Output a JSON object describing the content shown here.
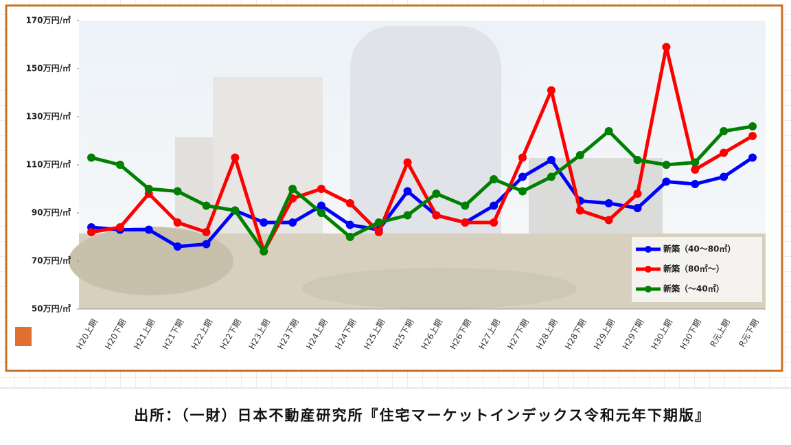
{
  "chart_data": {
    "type": "line",
    "categories": [
      "H20上期",
      "H20下期",
      "H21上期",
      "H21下期",
      "H22上期",
      "H22下期",
      "H23上期",
      "H23下期",
      "H24上期",
      "H24下期",
      "H25上期",
      "H25下期",
      "H26上期",
      "H26下期",
      "H27上期",
      "H27下期",
      "H28上期",
      "H28下期",
      "H29上期",
      "H29下期",
      "H30上期",
      "H30下期",
      "R元上期",
      "R元下期"
    ],
    "series": [
      {
        "name": "新築（40～80㎡）",
        "color": "#0000ff",
        "values": [
          84,
          83,
          83,
          76,
          77,
          91,
          86,
          86,
          93,
          85,
          83,
          99,
          89,
          86,
          93,
          105,
          112,
          95,
          94,
          92,
          103,
          102,
          105,
          113
        ]
      },
      {
        "name": "新築（80㎡～）",
        "color": "#ff0000",
        "values": [
          82,
          84,
          98,
          86,
          82,
          113,
          74,
          96,
          100,
          94,
          82,
          111,
          89,
          86,
          86,
          113,
          141,
          91,
          87,
          98,
          159,
          108,
          115,
          122
        ]
      },
      {
        "name": "新築（～40㎡）",
        "color": "#008000",
        "values": [
          113,
          110,
          100,
          99,
          93,
          91,
          74,
          100,
          90,
          80,
          86,
          89,
          98,
          93,
          104,
          99,
          105,
          114,
          124,
          112,
          110,
          111,
          124,
          126
        ]
      }
    ],
    "ylim": [
      50,
      170
    ],
    "yticks": [
      {
        "value": 50,
        "label": "50万円/㎡"
      },
      {
        "value": 70,
        "label": "70万円/㎡"
      },
      {
        "value": 90,
        "label": "90万円/㎡"
      },
      {
        "value": 110,
        "label": "110万円/㎡"
      },
      {
        "value": 130,
        "label": "130万円/㎡"
      },
      {
        "value": 150,
        "label": "150万円/㎡"
      },
      {
        "value": 170,
        "label": "170万円/㎡"
      }
    ],
    "legend": "lower right",
    "source": "出所：（一財）日本不動産研究所『住宅マーケットインデックス令和元年下期版』"
  }
}
